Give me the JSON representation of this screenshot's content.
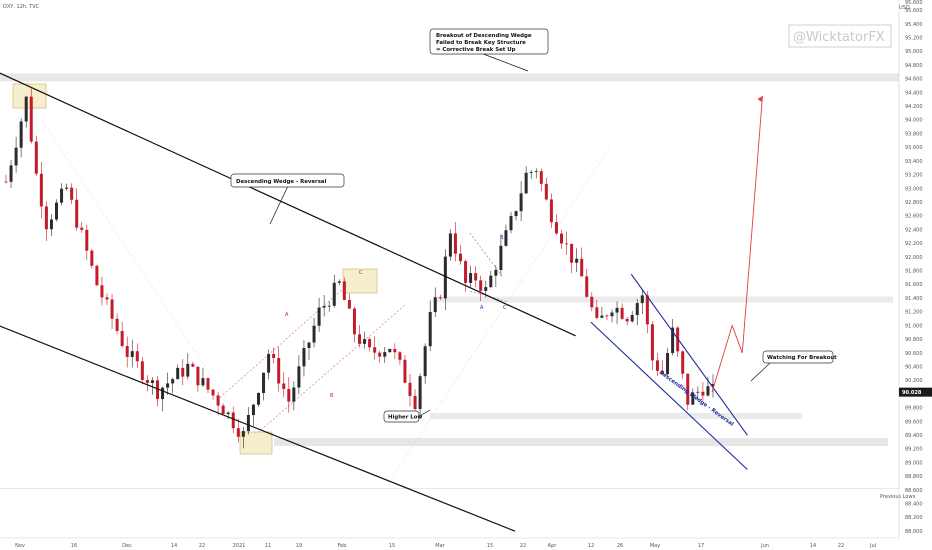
{
  "header": {
    "symbol": "DXY, 12h, TVC",
    "currency": "USD",
    "watermark": "@WicktatorFX"
  },
  "colors": {
    "up": "#2b2b2b",
    "down": "#c21c2c",
    "wedge": "#1f2a9e",
    "projection": "#e04040",
    "structure": "#111111",
    "zone_fill": "#f5ecc4",
    "zone_border": "#c8b060",
    "price_tag": "#1a1a1a"
  },
  "chart_data": {
    "type": "candlestick",
    "y_axis": {
      "range": [
        87.9,
        95.75
      ],
      "ticks": [
        "88.000",
        "88.200",
        "88.400",
        "88.600",
        "88.800",
        "89.000",
        "89.200",
        "89.400",
        "89.600",
        "89.800",
        "90.000",
        "90.200",
        "90.400",
        "90.600",
        "90.800",
        "91.000",
        "91.200",
        "91.400",
        "91.600",
        "91.800",
        "92.000",
        "92.200",
        "92.400",
        "92.600",
        "92.800",
        "93.000",
        "93.200",
        "93.400",
        "93.600",
        "93.800",
        "94.000",
        "94.200",
        "94.400",
        "94.600",
        "94.800",
        "95.000",
        "95.200",
        "95.400",
        "95.600"
      ],
      "top_tick_label": "95.600",
      "last_price": "90.028"
    },
    "x_axis": {
      "labels": [
        "Nov",
        "16",
        "Dec",
        "14",
        "22",
        "2021",
        "11",
        "19",
        "Feb",
        "15",
        "Mar",
        "15",
        "22",
        "Apr",
        "12",
        "26",
        "May",
        "17",
        "Jun",
        "14",
        "22",
        "Jul"
      ]
    },
    "price_path": {
      "description": "12h candles; closing-price anchor points (bar index, price)",
      "bars": 150,
      "anchors": [
        [
          0,
          93.1
        ],
        [
          4,
          94.3
        ],
        [
          6,
          93.2
        ],
        [
          8,
          92.5
        ],
        [
          12,
          93.0
        ],
        [
          18,
          91.6
        ],
        [
          24,
          90.6
        ],
        [
          30,
          90.05
        ],
        [
          36,
          90.4
        ],
        [
          42,
          89.9
        ],
        [
          47,
          89.4
        ],
        [
          52,
          90.6
        ],
        [
          56,
          89.9
        ],
        [
          62,
          91.2
        ],
        [
          66,
          91.6
        ],
        [
          69,
          90.9
        ],
        [
          72,
          90.6
        ],
        [
          76,
          90.7
        ],
        [
          78,
          90.4
        ],
        [
          81,
          89.9
        ],
        [
          84,
          91.1
        ],
        [
          86,
          91.5
        ],
        [
          88,
          92.4
        ],
        [
          91,
          91.6
        ],
        [
          93,
          91.7
        ],
        [
          95,
          91.5
        ],
        [
          97,
          91.9
        ],
        [
          100,
          92.5
        ],
        [
          103,
          93.2
        ],
        [
          105,
          93.3
        ],
        [
          107,
          92.8
        ],
        [
          110,
          92.3
        ],
        [
          114,
          91.7
        ],
        [
          117,
          91.0
        ],
        [
          120,
          91.3
        ],
        [
          123,
          91.15
        ],
        [
          126,
          91.45
        ],
        [
          128,
          90.5
        ],
        [
          130,
          90.3
        ],
        [
          132,
          90.9
        ],
        [
          135,
          89.9
        ],
        [
          138,
          90.1
        ],
        [
          140,
          90.03
        ]
      ]
    },
    "structures": [
      {
        "name": "Descending Wedge - Reversal (upper line)",
        "points": [
          [
            -3,
            94.75
          ],
          [
            113,
            90.85
          ]
        ]
      },
      {
        "name": "Descending Wedge - Reversal (lower line)",
        "points": [
          [
            -3,
            91.05
          ],
          [
            101,
            88.0
          ]
        ]
      },
      {
        "name": "Wedge - upper line",
        "points": [
          [
            124,
            91.75
          ],
          [
            147,
            89.4
          ]
        ]
      },
      {
        "name": "Wedge - lower line",
        "points": [
          [
            116,
            91.05
          ],
          [
            147,
            88.9
          ]
        ]
      }
    ],
    "projection": [
      [
        140,
        90.03
      ],
      [
        144,
        91.0
      ],
      [
        146,
        90.6
      ],
      [
        150,
        94.35
      ]
    ],
    "levels": [
      {
        "name": "breakout-zone-upper",
        "price": 94.62
      },
      {
        "name": "structure-level",
        "price": 91.38
      },
      {
        "name": "breakout-trigger",
        "price": 89.68
      },
      {
        "name": "higher-low-support",
        "price": 89.3
      },
      {
        "name": "previous-lows",
        "price": 88.62
      }
    ],
    "annotations": {
      "breakout_box": [
        "Breakout of Descending Wedge",
        "Failed to Break Key Structure",
        "= Corrective Break Set Up"
      ],
      "descending_wedge": "Descending Wedge - Reversal",
      "watching": "Watching For Breakout",
      "higher_low": "Higher Low",
      "previous_lows": "Previous Lows",
      "wedge_label": "Descending Wedge - Reversal",
      "pattern_letters": [
        "A",
        "B",
        "C",
        "A",
        "B",
        "C",
        "A",
        "B",
        "C"
      ]
    }
  }
}
